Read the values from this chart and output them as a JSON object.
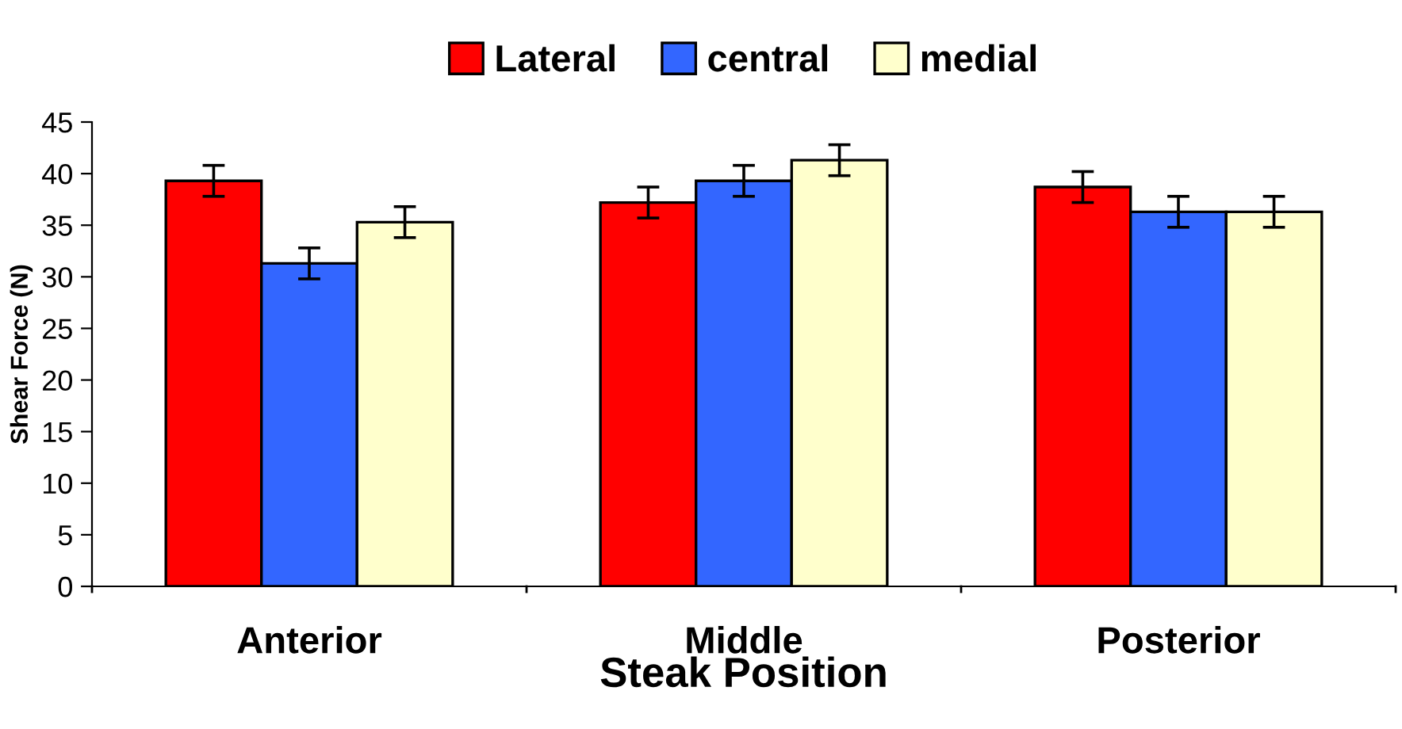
{
  "chart_data": {
    "type": "bar",
    "xlabel": "Steak Position",
    "ylabel": "Shear Force (N)",
    "categories": [
      "Anterior",
      "Middle",
      "Posterior"
    ],
    "series": [
      {
        "name": "Lateral",
        "color": "#ff0000",
        "values": [
          39.3,
          37.2,
          38.7
        ],
        "errors": [
          1.5,
          1.5,
          1.5
        ]
      },
      {
        "name": "central",
        "color": "#3366ff",
        "values": [
          31.3,
          39.3,
          36.3
        ],
        "errors": [
          1.5,
          1.5,
          1.5
        ]
      },
      {
        "name": "medial",
        "color": "#ffffcc",
        "values": [
          35.3,
          41.3,
          36.3
        ],
        "errors": [
          1.5,
          1.5,
          1.5
        ]
      }
    ],
    "ylim": [
      0,
      45
    ],
    "yticks": [
      0,
      5,
      10,
      15,
      20,
      25,
      30,
      35,
      40,
      45
    ],
    "grid": false,
    "legend": "top"
  }
}
